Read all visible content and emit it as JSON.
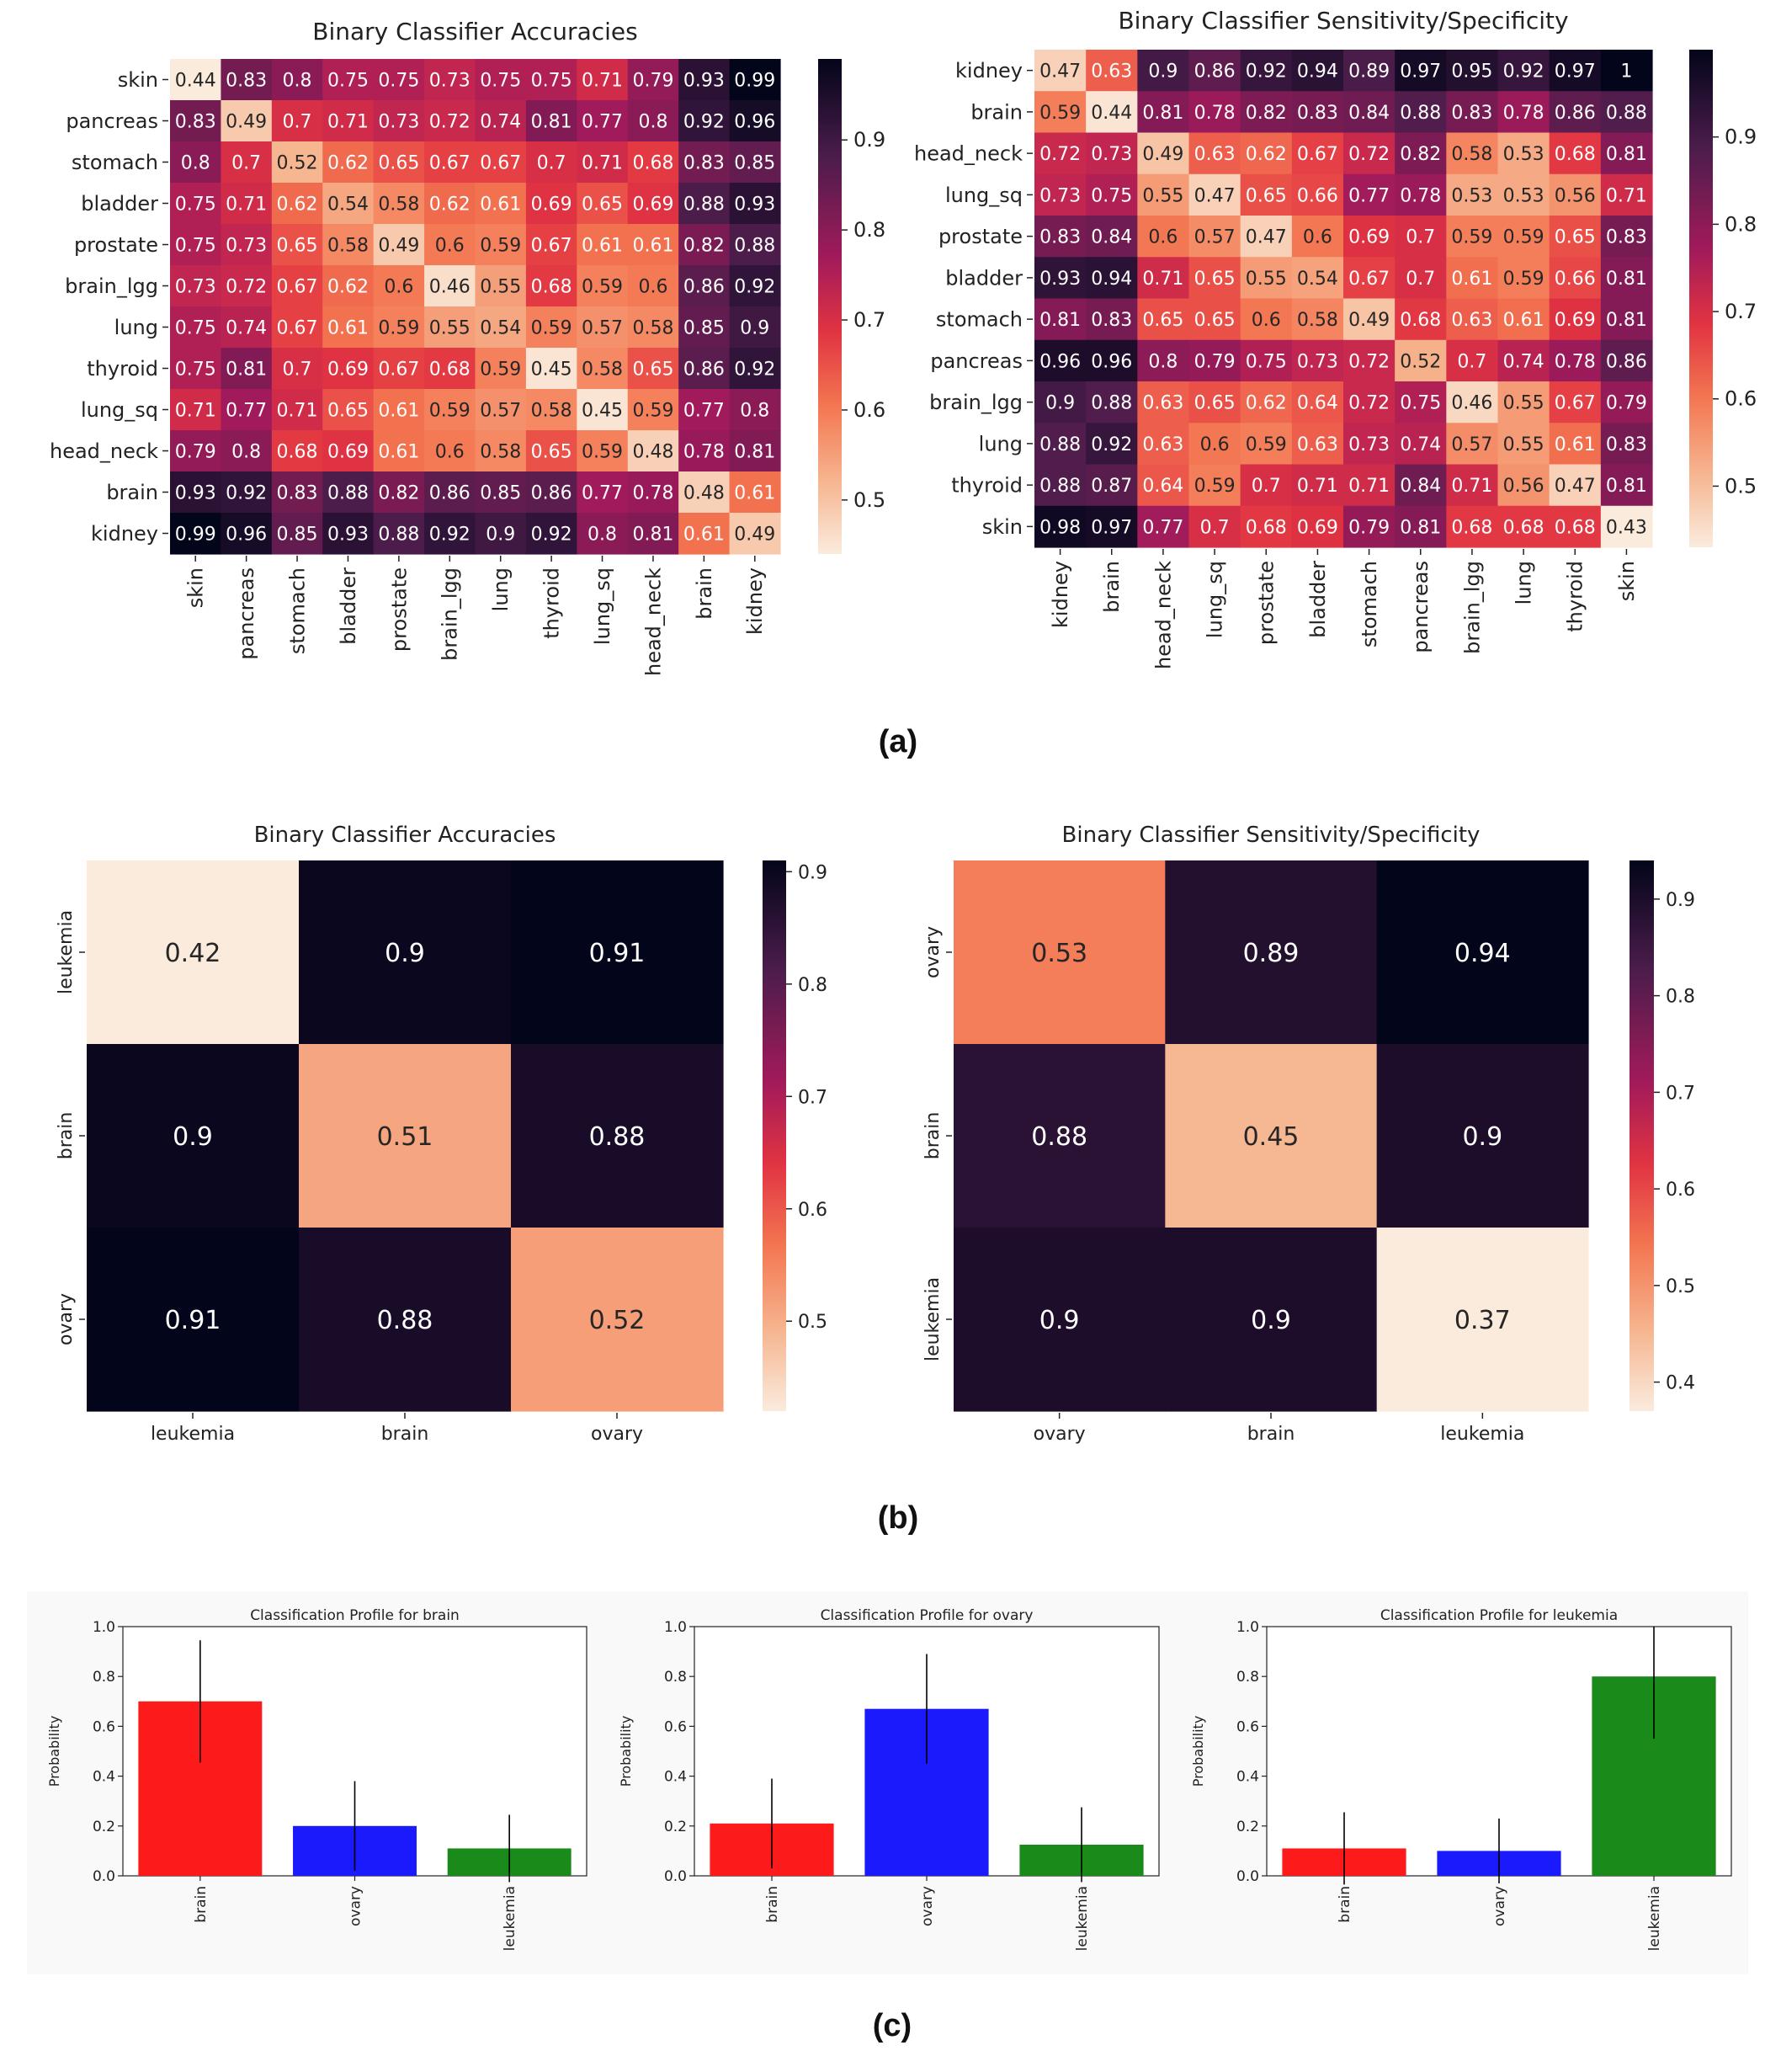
{
  "panel_labels": {
    "a": "(a)",
    "b": "(b)",
    "c": "(c)"
  },
  "colormap": "rocket_r",
  "chart_data": [
    {
      "type": "heatmap",
      "title": "Binary Classifier Accuracies",
      "row_labels": [
        "skin",
        "pancreas",
        "stomach",
        "bladder",
        "prostate",
        "brain_lgg",
        "lung",
        "thyroid",
        "lung_sq",
        "head_neck",
        "brain",
        "kidney"
      ],
      "col_labels": [
        "skin",
        "pancreas",
        "stomach",
        "bladder",
        "prostate",
        "brain_lgg",
        "lung",
        "thyroid",
        "lung_sq",
        "head_neck",
        "brain",
        "kidney"
      ],
      "values": [
        [
          0.44,
          0.83,
          0.8,
          0.75,
          0.75,
          0.73,
          0.75,
          0.75,
          0.71,
          0.79,
          0.93,
          0.99
        ],
        [
          0.83,
          0.49,
          0.7,
          0.71,
          0.73,
          0.72,
          0.74,
          0.81,
          0.77,
          0.8,
          0.92,
          0.96
        ],
        [
          0.8,
          0.7,
          0.52,
          0.62,
          0.65,
          0.67,
          0.67,
          0.7,
          0.71,
          0.68,
          0.83,
          0.85
        ],
        [
          0.75,
          0.71,
          0.62,
          0.54,
          0.58,
          0.62,
          0.61,
          0.69,
          0.65,
          0.69,
          0.88,
          0.93
        ],
        [
          0.75,
          0.73,
          0.65,
          0.58,
          0.49,
          0.6,
          0.59,
          0.67,
          0.61,
          0.61,
          0.82,
          0.88
        ],
        [
          0.73,
          0.72,
          0.67,
          0.62,
          0.6,
          0.46,
          0.55,
          0.68,
          0.59,
          0.6,
          0.86,
          0.92
        ],
        [
          0.75,
          0.74,
          0.67,
          0.61,
          0.59,
          0.55,
          0.54,
          0.59,
          0.57,
          0.58,
          0.85,
          0.9
        ],
        [
          0.75,
          0.81,
          0.7,
          0.69,
          0.67,
          0.68,
          0.59,
          0.45,
          0.58,
          0.65,
          0.86,
          0.92
        ],
        [
          0.71,
          0.77,
          0.71,
          0.65,
          0.61,
          0.59,
          0.57,
          0.58,
          0.45,
          0.59,
          0.77,
          0.8
        ],
        [
          0.79,
          0.8,
          0.68,
          0.69,
          0.61,
          0.6,
          0.58,
          0.65,
          0.59,
          0.48,
          0.78,
          0.81
        ],
        [
          0.93,
          0.92,
          0.83,
          0.88,
          0.82,
          0.86,
          0.85,
          0.86,
          0.77,
          0.78,
          0.48,
          0.61
        ],
        [
          0.99,
          0.96,
          0.85,
          0.93,
          0.88,
          0.92,
          0.9,
          0.92,
          0.8,
          0.81,
          0.61,
          0.49
        ]
      ],
      "colorbar_range": [
        0.44,
        0.99
      ],
      "colorbar_ticks": [
        "0.5",
        "0.6",
        "0.7",
        "0.8",
        "0.9"
      ]
    },
    {
      "type": "heatmap",
      "title": "Binary Classifier Sensitivity/Specificity",
      "row_labels": [
        "kidney",
        "brain",
        "head_neck",
        "lung_sq",
        "prostate",
        "bladder",
        "stomach",
        "pancreas",
        "brain_lgg",
        "lung",
        "thyroid",
        "skin"
      ],
      "col_labels": [
        "kidney",
        "brain",
        "head_neck",
        "lung_sq",
        "prostate",
        "bladder",
        "stomach",
        "pancreas",
        "brain_lgg",
        "lung",
        "thyroid",
        "skin"
      ],
      "values": [
        [
          0.47,
          0.63,
          0.9,
          0.86,
          0.92,
          0.94,
          0.89,
          0.97,
          0.95,
          0.92,
          0.97,
          1
        ],
        [
          0.59,
          0.44,
          0.81,
          0.78,
          0.82,
          0.83,
          0.84,
          0.88,
          0.83,
          0.78,
          0.86,
          0.88
        ],
        [
          0.72,
          0.73,
          0.49,
          0.63,
          0.62,
          0.67,
          0.72,
          0.82,
          0.58,
          0.53,
          0.68,
          0.81
        ],
        [
          0.73,
          0.75,
          0.55,
          0.47,
          0.65,
          0.66,
          0.77,
          0.78,
          0.53,
          0.53,
          0.56,
          0.71
        ],
        [
          0.83,
          0.84,
          0.6,
          0.57,
          0.47,
          0.6,
          0.69,
          0.7,
          0.59,
          0.59,
          0.65,
          0.83
        ],
        [
          0.93,
          0.94,
          0.71,
          0.65,
          0.55,
          0.54,
          0.67,
          0.7,
          0.61,
          0.59,
          0.66,
          0.81
        ],
        [
          0.81,
          0.83,
          0.65,
          0.65,
          0.6,
          0.58,
          0.49,
          0.68,
          0.63,
          0.61,
          0.69,
          0.81
        ],
        [
          0.96,
          0.96,
          0.8,
          0.79,
          0.75,
          0.73,
          0.72,
          0.52,
          0.7,
          0.74,
          0.78,
          0.86
        ],
        [
          0.9,
          0.88,
          0.63,
          0.65,
          0.62,
          0.64,
          0.72,
          0.75,
          0.46,
          0.55,
          0.67,
          0.79
        ],
        [
          0.88,
          0.92,
          0.63,
          0.6,
          0.59,
          0.63,
          0.73,
          0.74,
          0.57,
          0.55,
          0.61,
          0.83
        ],
        [
          0.88,
          0.87,
          0.64,
          0.59,
          0.7,
          0.71,
          0.71,
          0.84,
          0.71,
          0.56,
          0.47,
          0.81
        ],
        [
          0.98,
          0.97,
          0.77,
          0.7,
          0.68,
          0.69,
          0.79,
          0.81,
          0.68,
          0.68,
          0.68,
          0.43
        ]
      ],
      "colorbar_range": [
        0.43,
        1.0
      ],
      "colorbar_ticks": [
        "0.5",
        "0.6",
        "0.7",
        "0.8",
        "0.9"
      ]
    },
    {
      "type": "heatmap",
      "title": "Binary Classifier Accuracies",
      "row_labels": [
        "leukemia",
        "brain",
        "ovary"
      ],
      "col_labels": [
        "leukemia",
        "brain",
        "ovary"
      ],
      "values": [
        [
          0.42,
          0.9,
          0.91
        ],
        [
          0.9,
          0.51,
          0.88
        ],
        [
          0.91,
          0.88,
          0.52
        ]
      ],
      "colorbar_range": [
        0.42,
        0.91
      ],
      "colorbar_ticks": [
        "0.5",
        "0.6",
        "0.7",
        "0.8",
        "0.9"
      ]
    },
    {
      "type": "heatmap",
      "title": "Binary Classifier Sensitivity/Specificity",
      "row_labels": [
        "ovary",
        "brain",
        "leukemia"
      ],
      "col_labels": [
        "ovary",
        "brain",
        "leukemia"
      ],
      "values": [
        [
          0.53,
          0.89,
          0.94
        ],
        [
          0.88,
          0.45,
          0.9
        ],
        [
          0.9,
          0.9,
          0.37
        ]
      ],
      "colorbar_range": [
        0.37,
        0.94
      ],
      "colorbar_ticks": [
        "0.4",
        "0.5",
        "0.6",
        "0.7",
        "0.8",
        "0.9"
      ]
    },
    {
      "type": "bar",
      "title": "Classification Profile for brain",
      "categories": [
        "brain",
        "ovary",
        "leukemia"
      ],
      "values": [
        0.7,
        0.2,
        0.11
      ],
      "errors": [
        0.245,
        0.18,
        0.135
      ],
      "colors": [
        "#fc1a1a",
        "#1a1afc",
        "#1a8a1a"
      ],
      "ylabel": "Probability",
      "ylim": [
        0,
        1.0
      ],
      "yticks": [
        "0.0",
        "0.2",
        "0.4",
        "0.6",
        "0.8",
        "1.0"
      ]
    },
    {
      "type": "bar",
      "title": "Classification Profile for ovary",
      "categories": [
        "brain",
        "ovary",
        "leukemia"
      ],
      "values": [
        0.21,
        0.67,
        0.125
      ],
      "errors": [
        0.18,
        0.22,
        0.15
      ],
      "colors": [
        "#fc1a1a",
        "#1a1afc",
        "#1a8a1a"
      ],
      "ylabel": "Probability",
      "ylim": [
        0,
        1.0
      ],
      "yticks": [
        "0.0",
        "0.2",
        "0.4",
        "0.6",
        "0.8",
        "1.0"
      ]
    },
    {
      "type": "bar",
      "title": "Classification Profile for leukemia",
      "categories": [
        "brain",
        "ovary",
        "leukemia"
      ],
      "values": [
        0.11,
        0.1,
        0.8
      ],
      "errors": [
        0.145,
        0.13,
        0.25
      ],
      "colors": [
        "#fc1a1a",
        "#1a1afc",
        "#1a8a1a"
      ],
      "ylabel": "Probability",
      "ylim": [
        0,
        1.0
      ],
      "yticks": [
        "0.0",
        "0.2",
        "0.4",
        "0.6",
        "0.8",
        "1.0"
      ]
    }
  ]
}
